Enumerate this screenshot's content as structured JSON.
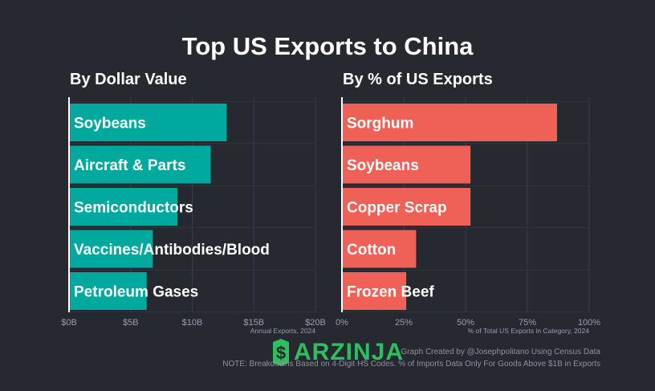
{
  "title": "Top US Exports to China",
  "left_subtitle": "By Dollar Value",
  "right_subtitle": "By % of US Exports",
  "credit": "Graph Created by @Josephpolitano Using Census Data",
  "footnote": "NOTE: Breakdowns Based on 4-Digit HS Codes. % of Imports Data Only For Goods Above $1B in Exports",
  "watermark": "ARZINJA",
  "colors": {
    "background": "#262930",
    "left_bar": "#00a99d",
    "right_bar": "#ef6157",
    "grid": "#3a3d45",
    "tick": "#9a9ea6",
    "watermark": "#2dbe60"
  },
  "chart_data": [
    {
      "type": "bar",
      "orientation": "horizontal",
      "title": "By Dollar Value",
      "categories": [
        "Soybeans",
        "Aircraft & Parts",
        "Semiconductors",
        "Vaccines/Antibodies/Blood",
        "Petroleum Gases"
      ],
      "values": [
        12.8,
        11.5,
        8.8,
        6.8,
        6.3
      ],
      "xlabel": "Annual Exports, 2024",
      "xlim": [
        0,
        20
      ],
      "xticks": [
        0,
        5,
        10,
        15,
        20
      ],
      "xtick_labels": [
        "$0B",
        "$5B",
        "$10B",
        "$15B",
        "$20B"
      ],
      "grid": true,
      "color": "#00a99d"
    },
    {
      "type": "bar",
      "orientation": "horizontal",
      "title": "By % of US Exports",
      "categories": [
        "Sorghum",
        "Soybeans",
        "Copper Scrap",
        "Cotton",
        "Frozen Beef"
      ],
      "values": [
        87,
        52,
        52,
        30,
        26
      ],
      "xlabel": "% of Total US Exports in Category, 2024",
      "xlim": [
        0,
        100
      ],
      "xticks": [
        0,
        25,
        50,
        75,
        100
      ],
      "xtick_labels": [
        "0%",
        "25%",
        "50%",
        "75%",
        "100%"
      ],
      "grid": true,
      "color": "#ef6157"
    }
  ]
}
